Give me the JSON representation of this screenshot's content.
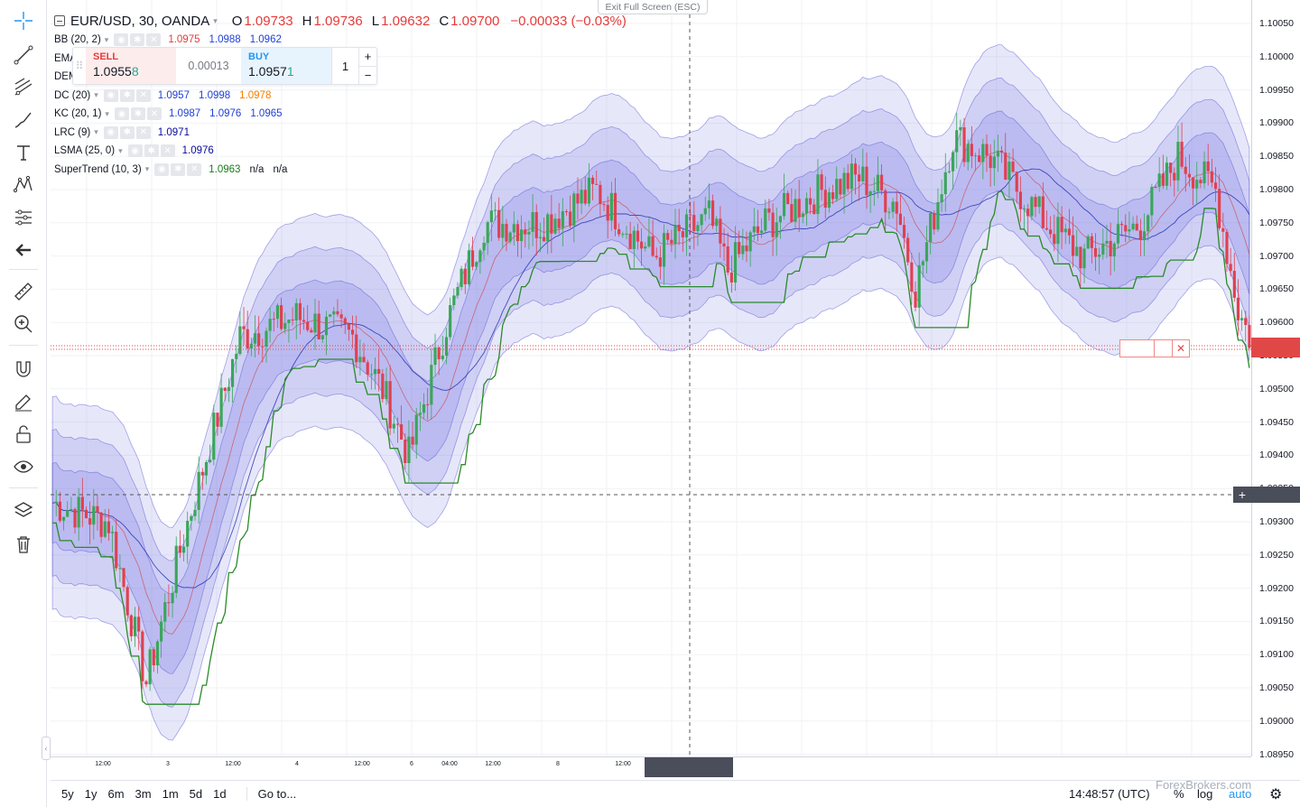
{
  "symbol": {
    "title": "EUR/USD, 30, OANDA",
    "ohlc": [
      {
        "label": "O",
        "value": "1.09733"
      },
      {
        "label": "H",
        "value": "1.09736"
      },
      {
        "label": "L",
        "value": "1.09632"
      },
      {
        "label": "C",
        "value": "1.09700"
      }
    ],
    "change": "−0.00033 (−0.03%)"
  },
  "indicators": [
    {
      "name": "BB (20, 2)",
      "values": [
        {
          "v": "1.0975",
          "color": "#e53b3b"
        },
        {
          "v": "1.0988",
          "color": "#1e3fd8"
        },
        {
          "v": "1.0962",
          "color": "#1e3fd8"
        }
      ]
    },
    {
      "name": "EMA",
      "values": []
    },
    {
      "name": "DEM",
      "values": []
    },
    {
      "name": "DC (20)",
      "values": [
        {
          "v": "1.0957",
          "color": "#1e3fd8"
        },
        {
          "v": "1.0998",
          "color": "#1e3fd8"
        },
        {
          "v": "1.0978",
          "color": "#f57c00"
        }
      ]
    },
    {
      "name": "KC (20, 1)",
      "values": [
        {
          "v": "1.0987",
          "color": "#1e3fd8"
        },
        {
          "v": "1.0976",
          "color": "#1e3fd8"
        },
        {
          "v": "1.0965",
          "color": "#1e3fd8"
        }
      ]
    },
    {
      "name": "LRC (9)",
      "values": [
        {
          "v": "1.0971",
          "color": "#0a0aa0"
        }
      ]
    },
    {
      "name": "LSMA (25, 0)",
      "values": [
        {
          "v": "1.0976",
          "color": "#0a0aa0"
        }
      ]
    },
    {
      "name": "SuperTrend (10, 3)",
      "values": [
        {
          "v": "1.0963",
          "color": "#1b7a1b"
        },
        {
          "v": "n/a",
          "color": "#131722"
        },
        {
          "v": "n/a",
          "color": "#131722"
        }
      ]
    }
  ],
  "trade_panel": {
    "sell_label": "SELL",
    "sell_price_main": "1.0955",
    "sell_price_pip": "8",
    "spread": "0.00013",
    "buy_label": "BUY",
    "buy_price_main": "1.0957",
    "buy_price_pip": "1",
    "quantity": "1",
    "plus": "+",
    "minus": "−"
  },
  "exit_fullscreen": "Exit Full Screen (ESC)",
  "price_scale": [
    "1.10050",
    "1.10000",
    "1.09950",
    "1.09900",
    "1.09850",
    "1.09800",
    "1.09750",
    "1.09700",
    "1.09650",
    "1.09600",
    "1.09550",
    "1.09500",
    "1.09450",
    "1.09400",
    "1.09350",
    "1.09300",
    "1.09250",
    "1.09200",
    "1.09150",
    "1.09100",
    "1.09050",
    "1.09000",
    "1.08950"
  ],
  "time_axis": [
    "12:00",
    "3",
    "12:00",
    "4",
    "12:00",
    "6",
    "04:00",
    "12:00",
    "8",
    "12:00"
  ],
  "bottom_bar": {
    "ranges": [
      "5y",
      "1y",
      "6m",
      "3m",
      "1m",
      "5d",
      "1d"
    ],
    "goto": "Go to...",
    "clock": "14:48:57 (UTC)",
    "percent": "%",
    "log": "log",
    "auto": "auto",
    "watermark": "ForexBrokers.com"
  },
  "colors": {
    "up": "#3aa65a",
    "down": "#e04050",
    "band_fill": "#6a6ae0",
    "supertrend_up": "#2a8a2a",
    "supertrend_down": "#8a1a2a",
    "accent": "#2196f3"
  },
  "toolbar_icons": [
    "crosshair-icon",
    "trend-line-icon",
    "fib-icon",
    "brush-icon",
    "text-icon",
    "pattern-icon",
    "prediction-icon",
    "back-arrow-icon",
    "ruler-icon",
    "zoom-icon",
    "magnet-icon",
    "pencil-lock-icon",
    "lock-icon",
    "eye-icon",
    "layers-icon",
    "trash-icon"
  ]
}
